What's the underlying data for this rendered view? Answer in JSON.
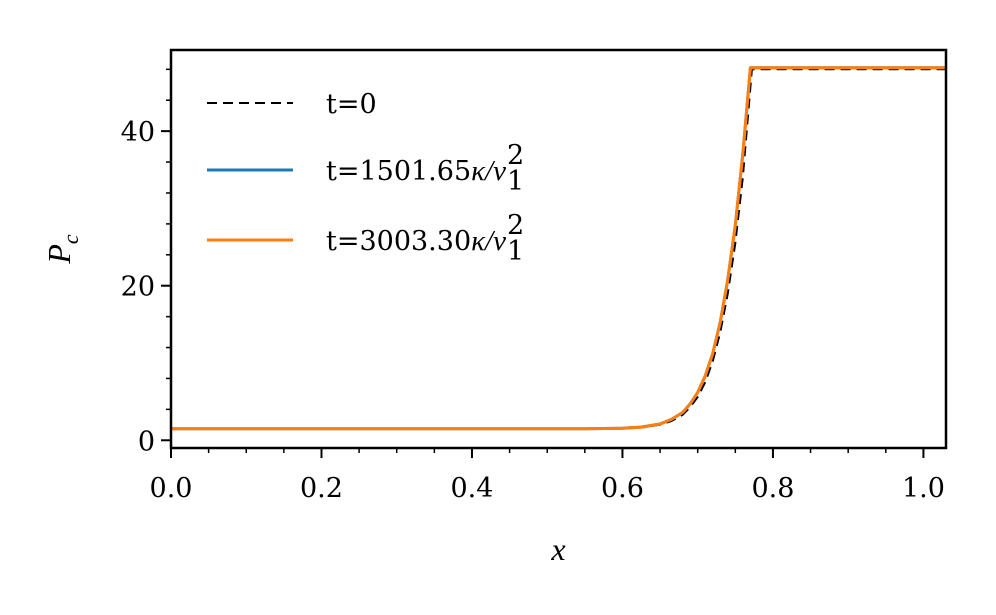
{
  "chart_data": {
    "type": "line",
    "title": "",
    "xlabel": "x",
    "ylabel": "P",
    "ylabel_subscript": "c",
    "xlim": [
      0.0,
      1.03
    ],
    "ylim": [
      -1.0,
      50.5
    ],
    "xticks": [
      0.0,
      0.2,
      0.4,
      0.6,
      0.8,
      1.0
    ],
    "xtick_labels": [
      "0.0",
      "0.2",
      "0.4",
      "0.6",
      "0.8",
      "1.0"
    ],
    "yticks": [
      0,
      20,
      40
    ],
    "ytick_labels": [
      "0",
      "20",
      "40"
    ],
    "minor_ticks": true,
    "grid": false,
    "legend_position": "upper-left",
    "series": [
      {
        "name": "t=0",
        "color": "#000000",
        "dash": "dashed",
        "x": [
          0.0,
          0.2,
          0.4,
          0.55,
          0.6,
          0.625,
          0.65,
          0.665,
          0.68,
          0.69,
          0.7,
          0.71,
          0.72,
          0.73,
          0.74,
          0.75,
          0.76,
          0.772,
          0.78,
          0.9,
          1.03
        ],
        "y": [
          1.5,
          1.5,
          1.5,
          1.5,
          1.55,
          1.65,
          2.0,
          2.5,
          3.3,
          4.3,
          5.6,
          7.5,
          10.2,
          14.0,
          19.0,
          25.5,
          34.0,
          48.0,
          48.0,
          48.0,
          48.0
        ]
      },
      {
        "name": "t=1501.65",
        "name_suffix": "κ/v",
        "name_sup": "2",
        "name_sub": "1",
        "color": "#1f77b4",
        "dash": "solid",
        "x": [
          0.0,
          0.2,
          0.4,
          0.55,
          0.6,
          0.625,
          0.65,
          0.665,
          0.68,
          0.69,
          0.7,
          0.71,
          0.72,
          0.73,
          0.74,
          0.75,
          0.76,
          0.77,
          0.78,
          0.9,
          1.03
        ],
        "y": [
          1.5,
          1.5,
          1.5,
          1.5,
          1.55,
          1.7,
          2.1,
          2.7,
          3.6,
          4.7,
          6.2,
          8.3,
          11.2,
          15.3,
          20.8,
          27.8,
          37.0,
          48.2,
          48.2,
          48.2,
          48.2
        ]
      },
      {
        "name": "t=3003.30",
        "name_suffix": "κ/v",
        "name_sup": "2",
        "name_sub": "1",
        "color": "#ff7f0e",
        "dash": "solid",
        "x": [
          0.0,
          0.2,
          0.4,
          0.55,
          0.6,
          0.625,
          0.65,
          0.665,
          0.68,
          0.69,
          0.7,
          0.71,
          0.72,
          0.73,
          0.74,
          0.75,
          0.76,
          0.77,
          0.78,
          0.9,
          1.03
        ],
        "y": [
          1.5,
          1.5,
          1.5,
          1.5,
          1.55,
          1.7,
          2.1,
          2.7,
          3.6,
          4.7,
          6.2,
          8.3,
          11.2,
          15.3,
          20.8,
          27.8,
          37.0,
          48.2,
          48.2,
          48.2,
          48.2
        ]
      }
    ]
  }
}
